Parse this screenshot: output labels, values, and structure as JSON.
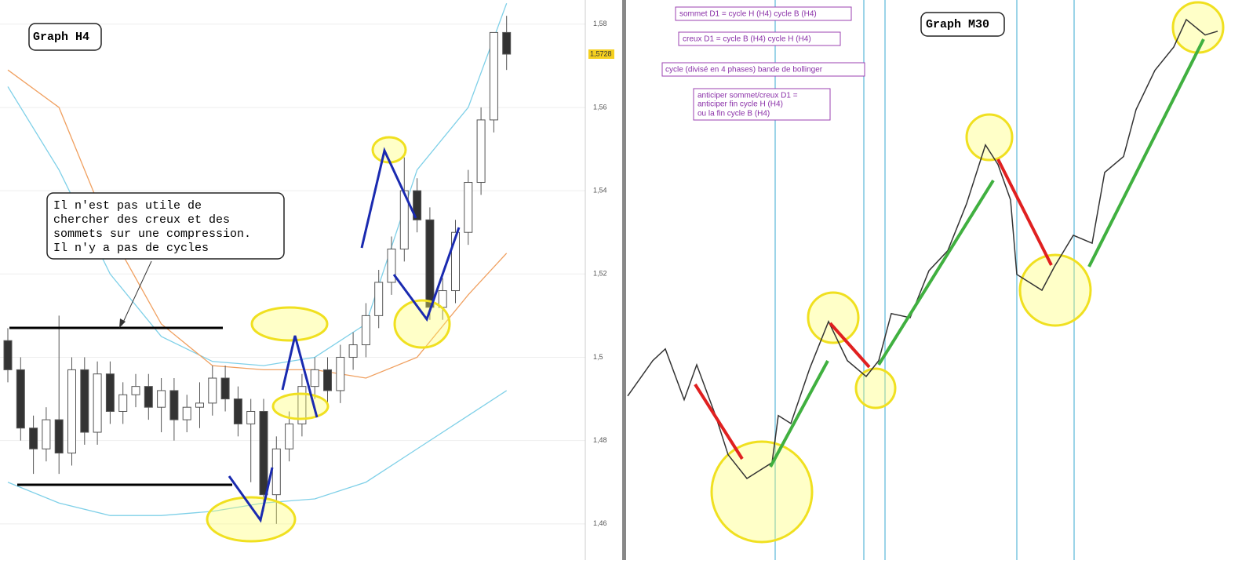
{
  "chart_data": [
    {
      "type": "candlestick",
      "title": "Graph H4",
      "annotations": [
        "Il n'est pas utile de",
        "chercher des creux et des",
        "sommets sur une compression.",
        "Il n'y a pas de cycles"
      ],
      "open": [
        1.504,
        1.497,
        1.483,
        1.478,
        1.485,
        1.477,
        1.497,
        1.482,
        1.496,
        1.487,
        1.491,
        1.493,
        1.488,
        1.492,
        1.485,
        1.488,
        1.489,
        1.495,
        1.49,
        1.484,
        1.487,
        1.467,
        1.478,
        1.484,
        1.493,
        1.497,
        1.492,
        1.5,
        1.503,
        1.51,
        1.518,
        1.526,
        1.54,
        1.533,
        1.512,
        1.516,
        1.53,
        1.542,
        1.557,
        1.578
      ],
      "high": [
        1.507,
        1.5,
        1.486,
        1.488,
        1.51,
        1.5,
        1.5,
        1.499,
        1.499,
        1.494,
        1.496,
        1.496,
        1.495,
        1.495,
        1.491,
        1.494,
        1.498,
        1.498,
        1.493,
        1.49,
        1.49,
        1.481,
        1.487,
        1.496,
        1.5,
        1.5,
        1.503,
        1.506,
        1.513,
        1.521,
        1.529,
        1.548,
        1.543,
        1.536,
        1.519,
        1.533,
        1.545,
        1.56,
        1.578,
        1.582
      ],
      "low": [
        1.494,
        1.48,
        1.472,
        1.475,
        1.472,
        1.474,
        1.479,
        1.479,
        1.484,
        1.484,
        1.488,
        1.485,
        1.482,
        1.48,
        1.482,
        1.483,
        1.486,
        1.487,
        1.481,
        1.47,
        1.463,
        1.46,
        1.475,
        1.481,
        1.49,
        1.489,
        1.489,
        1.497,
        1.5,
        1.507,
        1.515,
        1.523,
        1.53,
        1.509,
        1.509,
        1.513,
        1.527,
        1.539,
        1.554,
        1.569
      ],
      "close": [
        1.497,
        1.483,
        1.478,
        1.485,
        1.477,
        1.497,
        1.482,
        1.496,
        1.487,
        1.491,
        1.493,
        1.488,
        1.492,
        1.485,
        1.488,
        1.489,
        1.495,
        1.49,
        1.484,
        1.487,
        1.467,
        1.478,
        1.484,
        1.493,
        1.497,
        1.492,
        1.5,
        1.503,
        1.51,
        1.518,
        1.526,
        1.54,
        1.533,
        1.512,
        1.516,
        1.53,
        1.542,
        1.557,
        1.578,
        1.5728
      ],
      "band_x": [
        0,
        4,
        8,
        12,
        16,
        20,
        24,
        28,
        32,
        36,
        39
      ],
      "upper_band": [
        1.565,
        1.545,
        1.52,
        1.505,
        1.499,
        1.498,
        1.5,
        1.508,
        1.545,
        1.56,
        1.585
      ],
      "middle_band": [
        1.569,
        1.56,
        1.53,
        1.508,
        1.498,
        1.497,
        1.497,
        1.495,
        1.5,
        1.515,
        1.525
      ],
      "lower_band": [
        1.47,
        1.465,
        1.462,
        1.462,
        1.463,
        1.465,
        1.466,
        1.47,
        1.478,
        1.486,
        1.492
      ],
      "band_color": "#7fd0e8",
      "middle_color": "#f0a060",
      "ylim": [
        1.4513,
        1.5858
      ],
      "yticks": [
        {
          "value": 1.46,
          "label": "1,46"
        },
        {
          "value": 1.48,
          "label": "1,48"
        },
        {
          "value": 1.5,
          "label": "1,5"
        },
        {
          "value": 1.52,
          "label": "1,52"
        },
        {
          "value": 1.54,
          "label": "1,54"
        },
        {
          "value": 1.56,
          "label": "1,56"
        },
        {
          "value": 1.58,
          "label": "1,58"
        }
      ],
      "last_price": {
        "value": 1.5728,
        "label": "1,5728"
      },
      "grid": true
    },
    {
      "type": "line",
      "title": "Graph M30",
      "annotations": [
        "sommet D1 = cycle H (H4) cycle B (H4)",
        "creux D1 = cycle B (H4) cycle H (H4)",
        "cycle (divisé en 4 phases) bande de bollinger",
        "anticiper sommet/creux D1 =",
        "anticiper fin cycle H (H4)",
        "ou la fin cycle B (H4)"
      ],
      "x": [
        0,
        4,
        6,
        9,
        11,
        14,
        16,
        19,
        21,
        23,
        24,
        26,
        29,
        32,
        35,
        38,
        40,
        42,
        45,
        48,
        51,
        54,
        57,
        59,
        61,
        62,
        66,
        68,
        71,
        74,
        76,
        79,
        81,
        84,
        87,
        89,
        92,
        94
      ],
      "values": [
        1.4907,
        1.4992,
        1.502,
        1.4898,
        1.4982,
        1.486,
        1.4766,
        1.4709,
        1.4728,
        1.4747,
        1.486,
        1.4841,
        1.4973,
        1.5086,
        1.4992,
        1.4954,
        1.4992,
        1.5105,
        1.5095,
        1.5208,
        1.5256,
        1.5369,
        1.551,
        1.5463,
        1.5378,
        1.5199,
        1.5161,
        1.5218,
        1.5293,
        1.5274,
        1.5444,
        1.5482,
        1.5595,
        1.5689,
        1.5745,
        1.5811,
        1.5774,
        1.5783
      ],
      "color": "#333333",
      "xlim": [
        0,
        96
      ],
      "ylim": [
        1.4513,
        1.5858
      ]
    }
  ]
}
